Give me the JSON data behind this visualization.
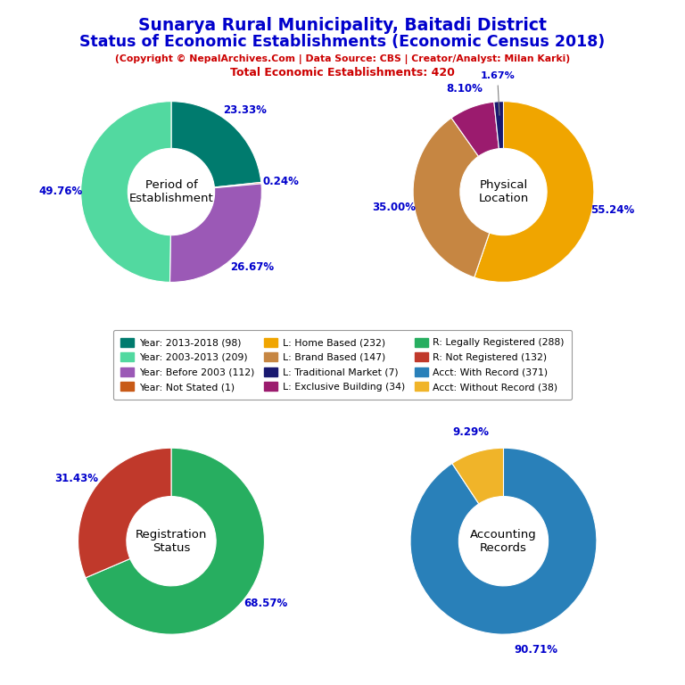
{
  "title_line1": "Sunarya Rural Municipality, Baitadi District",
  "title_line2": "Status of Economic Establishments (Economic Census 2018)",
  "subtitle": "(Copyright © NepalArchives.Com | Data Source: CBS | Creator/Analyst: Milan Karki)",
  "total_text": "Total Economic Establishments: 420",
  "title_color": "#0000CC",
  "subtitle_color": "#CC0000",
  "pie1_label": "Period of\nEstablishment",
  "pie1_values": [
    23.33,
    0.24,
    26.67,
    49.76
  ],
  "pie1_colors": [
    "#007B6E",
    "#C85A17",
    "#9B59B6",
    "#52D9A0"
  ],
  "pie1_pct_labels": [
    "23.33%",
    "0.24%",
    "26.67%",
    "49.76%"
  ],
  "pie1_startangle": 90,
  "pie2_label": "Physical\nLocation",
  "pie2_values": [
    55.24,
    35.0,
    8.1,
    1.67
  ],
  "pie2_colors": [
    "#F0A500",
    "#C68642",
    "#9B1B6E",
    "#191970"
  ],
  "pie2_pct_labels": [
    "55.24%",
    "35.00%",
    "8.10%",
    "1.67%"
  ],
  "pie2_startangle": 90,
  "pie3_label": "Registration\nStatus",
  "pie3_values": [
    68.57,
    31.43
  ],
  "pie3_colors": [
    "#27AE60",
    "#C0392B"
  ],
  "pie3_pct_labels": [
    "68.57%",
    "31.43%"
  ],
  "pie3_startangle": 90,
  "pie4_label": "Accounting\nRecords",
  "pie4_values": [
    90.71,
    9.29
  ],
  "pie4_colors": [
    "#2980B9",
    "#F0B429"
  ],
  "pie4_pct_labels": [
    "90.71%",
    "9.29%"
  ],
  "pie4_startangle": 90,
  "legend_items": [
    {
      "label": "Year: 2013-2018 (98)",
      "color": "#007B6E"
    },
    {
      "label": "Year: 2003-2013 (209)",
      "color": "#52D9A0"
    },
    {
      "label": "Year: Before 2003 (112)",
      "color": "#9B59B6"
    },
    {
      "label": "Year: Not Stated (1)",
      "color": "#C85A17"
    },
    {
      "label": "L: Home Based (232)",
      "color": "#F0A500"
    },
    {
      "label": "L: Brand Based (147)",
      "color": "#C68642"
    },
    {
      "label": "L: Traditional Market (7)",
      "color": "#191970"
    },
    {
      "label": "L: Exclusive Building (34)",
      "color": "#9B1B6E"
    },
    {
      "label": "R: Legally Registered (288)",
      "color": "#27AE60"
    },
    {
      "label": "R: Not Registered (132)",
      "color": "#C0392B"
    },
    {
      "label": "Acct: With Record (371)",
      "color": "#2980B9"
    },
    {
      "label": "Acct: Without Record (38)",
      "color": "#F0B429"
    }
  ],
  "pct_color": "#0000CC",
  "center_label_color": "black",
  "wedge_lw": 0.8,
  "donut_width": 0.52
}
